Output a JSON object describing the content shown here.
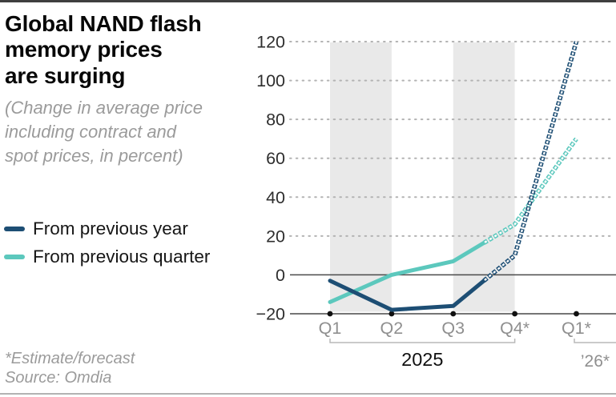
{
  "header": {
    "title_lines": [
      "Global NAND flash",
      "memory prices",
      "are surging"
    ],
    "subtitle_lines": [
      "(Change in average price",
      "including contract and",
      "spot prices, in percent)"
    ]
  },
  "legend": {
    "items": [
      {
        "label": "From previous year",
        "color": "#1d4e74"
      },
      {
        "label": "From previous quarter",
        "color": "#5cc8bd"
      }
    ]
  },
  "footnotes": {
    "estimate_note": "*Estimate/forecast",
    "source": "Source: Omdia"
  },
  "chart_data": {
    "type": "line",
    "title": "Global NAND flash memory prices are surging",
    "subtitle": "(Change in average price including contract and spot prices, in percent)",
    "unit": "percent",
    "categories": [
      "Q1",
      "Q2",
      "Q3",
      "Q4*",
      "Q1*"
    ],
    "series": [
      {
        "name": "From previous year",
        "color": "#1d4e74",
        "values": [
          -3,
          -18,
          -16,
          10,
          120
        ],
        "forecast_start_index": 3
      },
      {
        "name": "From previous quarter",
        "color": "#5cc8bd",
        "values": [
          -14,
          0,
          7,
          26,
          70
        ],
        "forecast_start_index": 3
      }
    ],
    "ylim": [
      -20,
      120
    ],
    "ytick_step": 20,
    "yticks": [
      120,
      100,
      80,
      60,
      40,
      20,
      0,
      -20
    ],
    "zero_line": true,
    "grid": "dotted",
    "band_color": "#e9e9e9",
    "shaded_bands": [
      [
        0,
        1
      ],
      [
        2,
        3
      ]
    ],
    "x_groups": [
      {
        "label": "2025",
        "from": 0,
        "to": 3,
        "to_edge": false
      },
      {
        "label": "’26*",
        "from": 4,
        "to_edge": true
      }
    ],
    "legend_position": "left"
  }
}
